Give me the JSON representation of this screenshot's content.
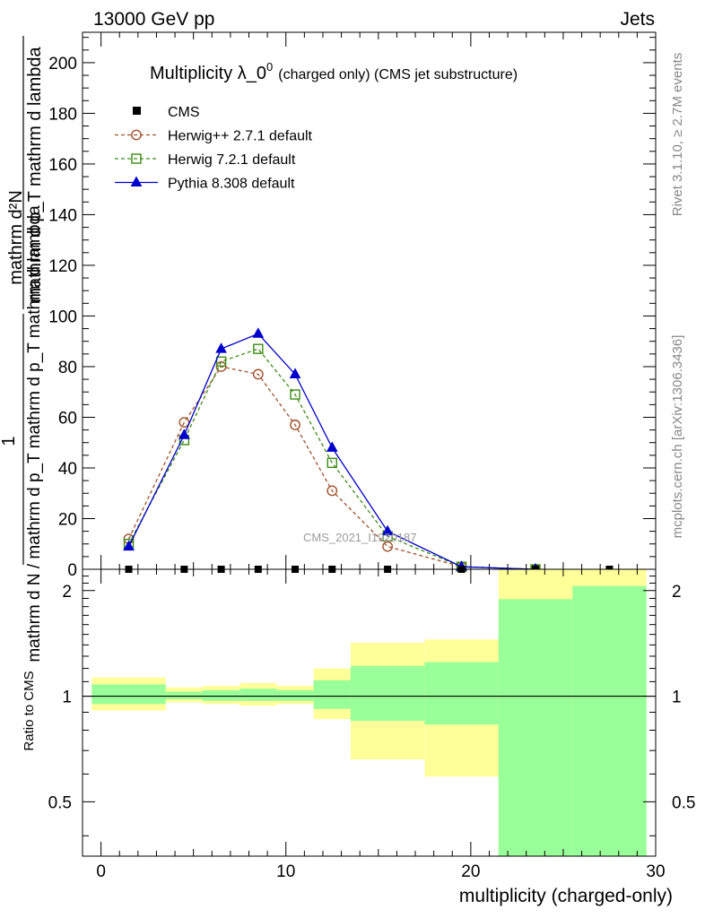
{
  "header": {
    "left": "13000 GeV pp",
    "right": "Jets"
  },
  "side_labels": {
    "rivet": "Rivet 3.1.10, ≥ 2.7M events",
    "mcplots": "mcplots.cern.ch [arXiv:1306.3436]"
  },
  "watermark": "CMS_2021_I1920187",
  "colors": {
    "herwigpp": "#a0522d",
    "herwig7": "#3c8c14",
    "pythia": "#0000cc",
    "band_yellow": "#ffff99",
    "band_green": "#99ff99",
    "data": "#000000"
  },
  "chart_data": [
    {
      "type": "line",
      "title_main": "Multiplicity λ_0",
      "title_sup": "0",
      "title_sub": "(charged only) (CMS jet substructure)",
      "ylabel_numerator": "mathrm d²N",
      "ylabel_numerator_one": "1",
      "ylabel_denominator_top": "mathrm d p_T mathrm d lambda",
      "ylabel_denominator_bottom": "mathrm d N / mathrm d p_T mathrm d p_T mathrm d lambda",
      "xlim": [
        -1,
        30
      ],
      "ylim": [
        0,
        212
      ],
      "y_ticks": [
        0,
        20,
        40,
        60,
        80,
        100,
        120,
        140,
        160,
        180,
        200
      ],
      "legend": [
        "CMS",
        "Herwig++ 2.7.1 default",
        "Herwig 7.2.1 default",
        "Pythia 8.308 default"
      ],
      "cms": {
        "name": "CMS",
        "x": [
          1.5,
          4.5,
          6.5,
          8.5,
          10.5,
          12.5,
          15.5,
          19.5,
          23.5,
          27.5
        ],
        "values": [
          0,
          0,
          0,
          0,
          0,
          0,
          0,
          0,
          0,
          0
        ]
      },
      "series": [
        {
          "name": "Herwig++ 2.7.1 default",
          "marker": "circle",
          "x": [
            1.5,
            4.5,
            6.5,
            8.5,
            10.5,
            12.5,
            15.5,
            19.5,
            23.5
          ],
          "values": [
            12,
            58,
            80,
            77,
            57,
            31,
            9,
            1,
            0
          ]
        },
        {
          "name": "Herwig 7.2.1 default",
          "marker": "square",
          "x": [
            1.5,
            4.5,
            6.5,
            8.5,
            10.5,
            12.5,
            15.5,
            19.5,
            23.5
          ],
          "values": [
            10,
            51,
            82,
            87,
            69,
            42,
            13,
            1,
            0
          ]
        },
        {
          "name": "Pythia 8.308 default",
          "marker": "triangle",
          "x": [
            1.5,
            4.5,
            6.5,
            8.5,
            10.5,
            12.5,
            15.5,
            19.5,
            23.5
          ],
          "values": [
            9,
            53,
            87,
            93,
            77,
            48,
            15,
            1,
            0
          ]
        }
      ]
    },
    {
      "type": "area",
      "ylabel": "Ratio to CMS",
      "xlabel": "multiplicity (charged-only)",
      "xlim": [
        -1,
        30
      ],
      "ylim": [
        0.35,
        2.3
      ],
      "x_ticks": [
        0,
        10,
        20,
        30
      ],
      "y_ticks": [
        0.5,
        1,
        2
      ],
      "bins": [
        {
          "x0": -0.5,
          "x1": 3.5,
          "yellow": [
            0.91,
            1.13
          ],
          "green": [
            0.95,
            1.08
          ]
        },
        {
          "x0": 3.5,
          "x1": 5.5,
          "yellow": [
            0.96,
            1.06
          ],
          "green": [
            0.98,
            1.03
          ]
        },
        {
          "x0": 5.5,
          "x1": 7.5,
          "yellow": [
            0.95,
            1.07
          ],
          "green": [
            0.97,
            1.04
          ]
        },
        {
          "x0": 7.5,
          "x1": 9.5,
          "yellow": [
            0.94,
            1.09
          ],
          "green": [
            0.97,
            1.05
          ]
        },
        {
          "x0": 9.5,
          "x1": 11.5,
          "yellow": [
            0.95,
            1.07
          ],
          "green": [
            0.97,
            1.04
          ]
        },
        {
          "x0": 11.5,
          "x1": 13.5,
          "yellow": [
            0.86,
            1.2
          ],
          "green": [
            0.92,
            1.11
          ]
        },
        {
          "x0": 13.5,
          "x1": 17.5,
          "yellow": [
            0.66,
            1.42
          ],
          "green": [
            0.85,
            1.22
          ]
        },
        {
          "x0": 17.5,
          "x1": 21.5,
          "yellow": [
            0.59,
            1.45
          ],
          "green": [
            0.83,
            1.25
          ]
        },
        {
          "x0": 21.5,
          "x1": 25.5,
          "yellow": [
            0.35,
            2.3
          ],
          "green": [
            0.35,
            1.89
          ]
        },
        {
          "x0": 25.5,
          "x1": 29.5,
          "yellow": [
            0.35,
            2.3
          ],
          "green": [
            0.35,
            2.06
          ]
        }
      ]
    }
  ]
}
